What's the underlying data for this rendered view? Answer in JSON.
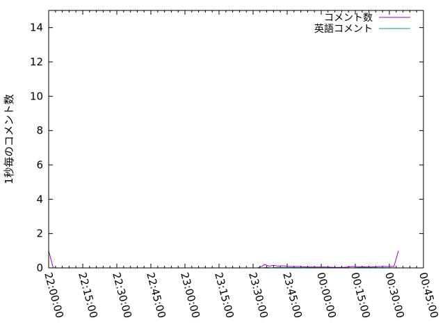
{
  "chart_data": {
    "type": "line",
    "title": "",
    "xlabel": "",
    "ylabel": "1秒毎のコメント数",
    "xlim": [
      "22:00:00",
      "00:45:00"
    ],
    "ylim": [
      0,
      15
    ],
    "x_tick_labels": [
      "22:00:00",
      "22:15:00",
      "22:30:00",
      "22:45:00",
      "23:00:00",
      "23:15:00",
      "23:30:00",
      "23:45:00",
      "00:00:00",
      "00:15:00",
      "00:30:00",
      "00:45:00"
    ],
    "y_tick_labels": [
      "0",
      "2",
      "4",
      "6",
      "8",
      "10",
      "12",
      "14"
    ],
    "legend_position": "top-right",
    "grid": false,
    "series": [
      {
        "name": "コメント数",
        "color": "#9400d3",
        "x": [
          "22:00",
          "22:02",
          "23:32",
          "23:34",
          "23:35",
          "23:37",
          "23:39",
          "23:41",
          "23:43",
          "23:46",
          "23:50",
          "23:54",
          "23:58",
          "00:02",
          "00:06",
          "00:10",
          "00:14",
          "00:18",
          "00:22",
          "00:26",
          "00:32",
          "00:34"
        ],
        "y": [
          1,
          0,
          0,
          0.1,
          0.2,
          0.1,
          0.15,
          0.1,
          0.12,
          0.08,
          0.08,
          0.05,
          0.05,
          0.05,
          0.03,
          0.03,
          0.08,
          0.06,
          0.05,
          0.08,
          0.08,
          1
        ]
      },
      {
        "name": "英語コメント",
        "color": "#009e73",
        "x": [
          "22:00",
          "23:34",
          "23:36",
          "23:38",
          "23:40",
          "00:14",
          "00:16",
          "00:34"
        ],
        "y": [
          0,
          0,
          0.03,
          0,
          0.02,
          0,
          0.02,
          0
        ]
      }
    ]
  }
}
